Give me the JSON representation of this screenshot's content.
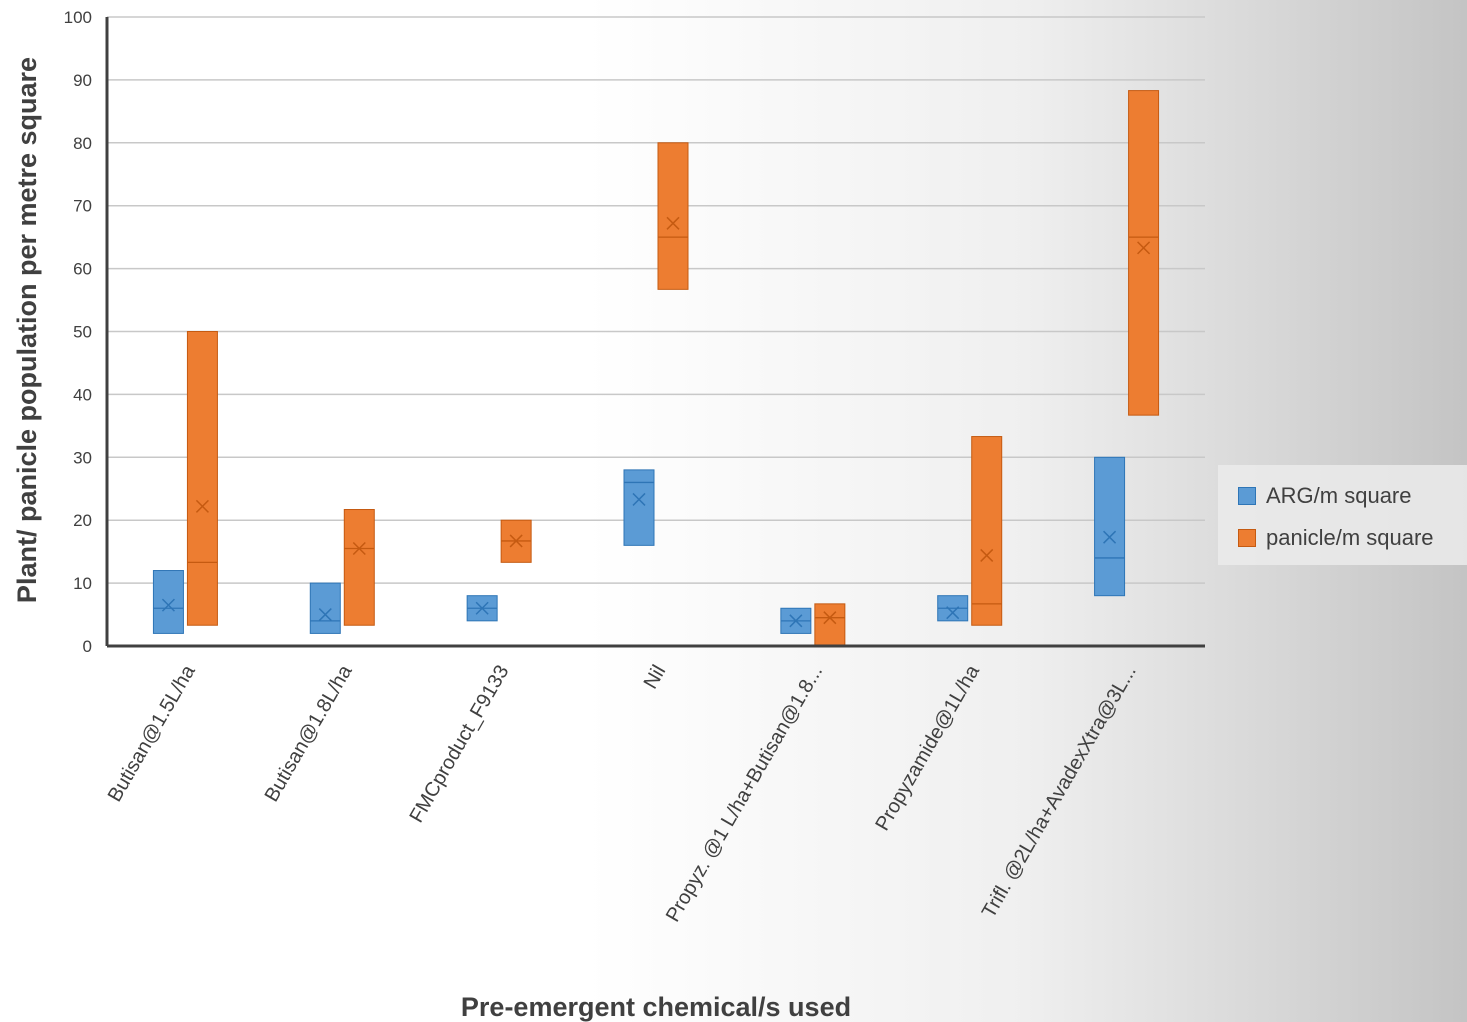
{
  "chart_data": {
    "type": "box",
    "xlabel": "Pre-emergent chemical/s used",
    "ylabel": "Plant/ panicle population per metre square",
    "ylim": [
      0,
      100
    ],
    "yticks": [
      0,
      10,
      20,
      30,
      40,
      50,
      60,
      70,
      80,
      90,
      100
    ],
    "grid": true,
    "legend_position": "right",
    "categories": [
      "Butisan@1.5L/ha",
      "Butisan@1.8L/ha",
      "FMCproduct_F9133",
      "Nil",
      "Propyz. @1 L/ha+Butisan@1.8...",
      "Propyzamide@1L/ha",
      "Trifl. @2L/ha+AvadexXtra@3L..."
    ],
    "series": [
      {
        "name": "ARG/m square",
        "color": "#5b9bd5",
        "boxes": [
          {
            "low": 2,
            "median": 6,
            "high": 12,
            "mean": 6.5
          },
          {
            "low": 2,
            "median": 4,
            "high": 10,
            "mean": 5
          },
          {
            "low": 4,
            "median": 6,
            "high": 8,
            "mean": 6
          },
          {
            "low": 16,
            "median": 26,
            "high": 28,
            "mean": 23.3
          },
          {
            "low": 2,
            "median": 4,
            "high": 6,
            "mean": 4
          },
          {
            "low": 4,
            "median": 6,
            "high": 8,
            "mean": 5.3
          },
          {
            "low": 8,
            "median": 14,
            "high": 30,
            "mean": 17.3
          }
        ]
      },
      {
        "name": "panicle/m square",
        "color": "#ed7d31",
        "boxes": [
          {
            "low": 3.3,
            "median": 13.3,
            "high": 50,
            "mean": 22.2
          },
          {
            "low": 3.3,
            "median": 15.5,
            "high": 21.7,
            "mean": 15.5
          },
          {
            "low": 13.3,
            "median": 16.7,
            "high": 20,
            "mean": 16.7
          },
          {
            "low": 56.7,
            "median": 65,
            "high": 80,
            "mean": 67.2
          },
          {
            "low": 0,
            "median": 4.5,
            "high": 6.7,
            "mean": 4.5
          },
          {
            "low": 3.3,
            "median": 6.7,
            "high": 33.3,
            "mean": 14.4
          },
          {
            "low": 36.7,
            "median": 65,
            "high": 88.3,
            "mean": 63.3
          }
        ]
      }
    ]
  }
}
